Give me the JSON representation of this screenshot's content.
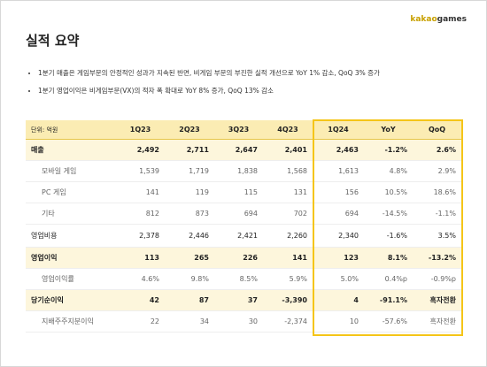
{
  "header": {
    "logo_kakao": "kakao",
    "logo_games": "games",
    "title": "실적 요약"
  },
  "bullets": [
    "1분기 매출은 게임부문의 안정적인 성과가 지속된 반면, 비게임 부문의 부진한 실적 개선으로 YoY 1% 감소, QoQ 3% 증가",
    "1분기 영업이익은 비게임부문(VX)의 적자 폭 확대로 YoY 8% 증가, QoQ 13% 감소"
  ],
  "table": {
    "header": [
      "단위: 억원",
      "1Q23",
      "2Q23",
      "3Q23",
      "4Q23",
      "1Q24",
      "YoY",
      "QoQ"
    ],
    "rows": [
      [
        "매출",
        "2,492",
        "2,711",
        "2,647",
        "2,401",
        "2,463",
        "-1.2%",
        "2.6%"
      ],
      [
        "모바일 게임",
        "1,539",
        "1,719",
        "1,838",
        "1,568",
        "1,613",
        "4.8%",
        "2.9%"
      ],
      [
        "PC 게임",
        "141",
        "119",
        "115",
        "131",
        "156",
        "10.5%",
        "18.6%"
      ],
      [
        "기타",
        "812",
        "873",
        "694",
        "702",
        "694",
        "-14.5%",
        "-1.1%"
      ],
      [
        "영업비용",
        "2,378",
        "2,446",
        "2,421",
        "2,260",
        "2,340",
        "-1.6%",
        "3.5%"
      ],
      [
        "영업이익",
        "113",
        "265",
        "226",
        "141",
        "123",
        "8.1%",
        "-13.2%"
      ],
      [
        "영업이익률",
        "4.6%",
        "9.8%",
        "8.5%",
        "5.9%",
        "5.0%",
        "0.4%p",
        "-0.9%p"
      ],
      [
        "당기순이익",
        "42",
        "87",
        "37",
        "-3,390",
        "4",
        "-91.1%",
        "흑자전환"
      ],
      [
        "지배주주지분이익",
        "22",
        "34",
        "30",
        "-2,374",
        "10",
        "-57.6%",
        "흑자전환"
      ]
    ]
  }
}
